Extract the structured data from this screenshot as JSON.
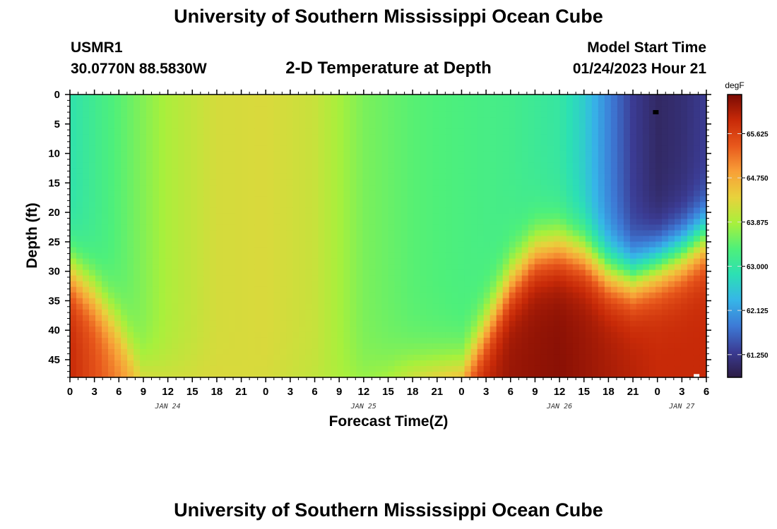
{
  "header": {
    "title": "University of Southern Mississippi Ocean Cube",
    "station": "USMR1",
    "coords": "30.0770N  88.5830W",
    "subtitle": "2-D Temperature at Depth",
    "start_label": "Model Start Time",
    "start_time": "01/24/2023 Hour 21"
  },
  "footer_title": "University of Southern Mississippi Ocean Cube",
  "chart_data": {
    "type": "heatmap",
    "title": "2-D Temperature at Depth",
    "xlabel": "Forecast Time(Z)",
    "ylabel": "Depth (ft)",
    "x_range_hours": [
      0,
      78
    ],
    "x_tick_labels": [
      "0",
      "3",
      "6",
      "9",
      "12",
      "15",
      "18",
      "21",
      "0",
      "3",
      "6",
      "9",
      "12",
      "15",
      "18",
      "21",
      "0",
      "3",
      "6",
      "9",
      "12",
      "15",
      "18",
      "21",
      "0",
      "3",
      "6"
    ],
    "date_labels": [
      {
        "hour": 12,
        "text": "JAN 24"
      },
      {
        "hour": 36,
        "text": "JAN 25"
      },
      {
        "hour": 60,
        "text": "JAN 26"
      },
      {
        "hour": 75,
        "text": "JAN 27"
      }
    ],
    "y_range_ft": [
      0,
      48
    ],
    "y_ticks": [
      0,
      5,
      10,
      15,
      20,
      25,
      30,
      35,
      40,
      45
    ],
    "colorbar": {
      "unit": "degF",
      "min": 60.8,
      "max": 66.4,
      "tick_values": [
        61.25,
        62.125,
        63.0,
        63.875,
        64.75,
        65.625
      ],
      "tick_labels": [
        "61.250",
        "62.125",
        "63.000",
        "63.875",
        "64.750",
        "65.625"
      ],
      "colormap": [
        "#2c1c44",
        "#3b3c94",
        "#3d7ad6",
        "#36b5e8",
        "#2ce0b4",
        "#4ef07a",
        "#a8f03c",
        "#e8d23c",
        "#f8a038",
        "#e8581c",
        "#c82a08",
        "#7a0a04"
      ]
    },
    "surface_temp_by_hour": [
      [
        0,
        62.9
      ],
      [
        6,
        63.4
      ],
      [
        12,
        63.9
      ],
      [
        18,
        64.2
      ],
      [
        24,
        64.25
      ],
      [
        30,
        64.1
      ],
      [
        36,
        63.6
      ],
      [
        42,
        63.4
      ],
      [
        48,
        63.3
      ],
      [
        54,
        63.2
      ],
      [
        60,
        63.0
      ],
      [
        63,
        62.6
      ],
      [
        66,
        61.9
      ],
      [
        69,
        61.3
      ],
      [
        72,
        61.0
      ],
      [
        75,
        61.1
      ],
      [
        78,
        61.3
      ]
    ],
    "bottom_temp_by_hour": [
      [
        0,
        65.9
      ],
      [
        6,
        65.1
      ],
      [
        12,
        64.4
      ],
      [
        18,
        64.3
      ],
      [
        24,
        64.2
      ],
      [
        30,
        64.0
      ],
      [
        36,
        63.9
      ],
      [
        39,
        64.2
      ],
      [
        42,
        64.9
      ],
      [
        48,
        65.8
      ],
      [
        54,
        66.2
      ],
      [
        60,
        66.3
      ],
      [
        66,
        66.1
      ],
      [
        72,
        65.9
      ],
      [
        78,
        65.9
      ]
    ],
    "thermocline_depth_ft_by_hour": [
      [
        0,
        30
      ],
      [
        3,
        34
      ],
      [
        6,
        40
      ],
      [
        9,
        48
      ],
      [
        48,
        48
      ],
      [
        51,
        40
      ],
      [
        54,
        32
      ],
      [
        57,
        27
      ],
      [
        60,
        26
      ],
      [
        63,
        27
      ],
      [
        66,
        30
      ],
      [
        69,
        31
      ],
      [
        72,
        29
      ],
      [
        75,
        27
      ],
      [
        78,
        24
      ]
    ],
    "markers": [
      {
        "hour": 71.8,
        "depth_ft": 3,
        "color": "#000000"
      },
      {
        "hour": 76.8,
        "depth_ft": 47.8,
        "color": "#ffffff"
      }
    ]
  }
}
